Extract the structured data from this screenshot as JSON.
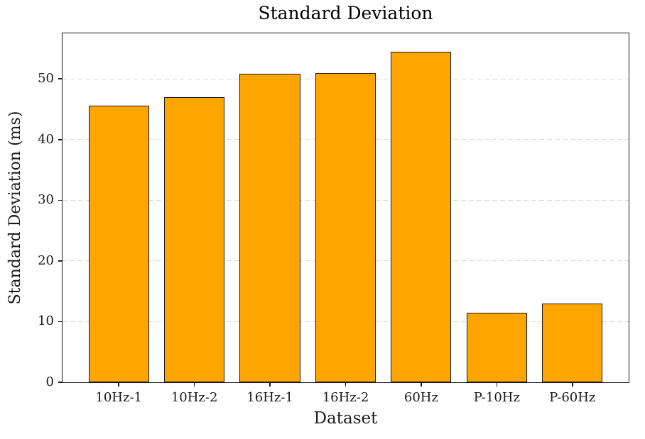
{
  "chart_data": {
    "type": "bar",
    "title": "Standard Deviation",
    "xlabel": "Dataset",
    "ylabel": "Standard Deviation (ms)",
    "categories": [
      "10Hz-1",
      "10Hz-2",
      "16Hz-1",
      "16Hz-2",
      "60Hz",
      "P-10Hz",
      "P-60Hz"
    ],
    "values": [
      45.6,
      47.0,
      50.8,
      50.9,
      54.5,
      11.5,
      13.0
    ],
    "ylim": [
      0,
      57.5
    ],
    "yticks": [
      0,
      10,
      20,
      30,
      40,
      50
    ],
    "grid": "horizontal dashed gridlines at y ticks, behind bars",
    "legend": "none",
    "colors": {
      "bar_fill": "#FFA500",
      "bar_edge": "#1a1a1a",
      "grid": "#d8d8d8",
      "axis": "#1a1a1a",
      "text": "#1a1a1a",
      "background": "#ffffff"
    }
  }
}
